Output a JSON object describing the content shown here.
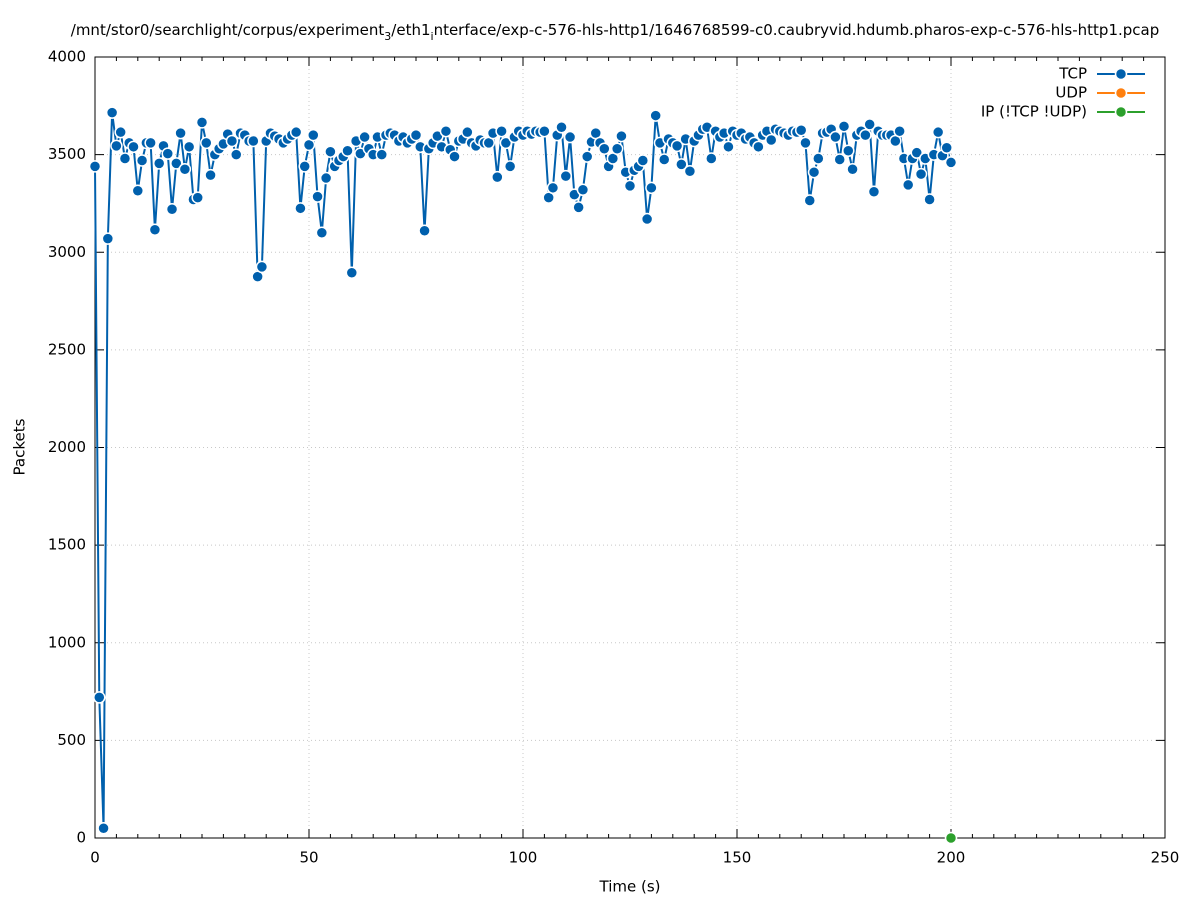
{
  "chart_data": {
    "type": "line",
    "title": [
      "/mnt/stor0/searchlight/corpus/experiment",
      "3",
      "/eth1",
      "i",
      "nterface/exp-c-576-hls-http1/1646768599-c0.caubryvid.hdumb.pharos-exp-c-576-hls-http1.pcap"
    ],
    "x_label": "Time (s)",
    "y_label": "Packets",
    "xlim": [
      0,
      250
    ],
    "xticks": [
      0,
      50,
      100,
      150,
      200,
      250
    ],
    "x_minor_per_major": 10,
    "ylim": [
      0,
      4000
    ],
    "yticks": [
      0,
      500,
      1000,
      1500,
      2000,
      2500,
      3000,
      3500,
      4000
    ],
    "grid": true,
    "legend": "top-right",
    "series": [
      {
        "name": "TCP",
        "color": "#0060ad",
        "x": [
          0,
          1,
          2,
          3,
          4,
          5,
          6,
          7,
          8,
          9,
          10,
          11,
          12,
          13,
          14,
          15,
          16,
          17,
          18,
          19,
          20,
          21,
          22,
          23,
          24,
          25,
          26,
          27,
          28,
          29,
          30,
          31,
          32,
          33,
          34,
          35,
          36,
          37,
          38,
          39,
          40,
          41,
          42,
          43,
          44,
          45,
          46,
          47,
          48,
          49,
          50,
          51,
          52,
          53,
          54,
          55,
          56,
          57,
          58,
          59,
          60,
          61,
          62,
          63,
          64,
          65,
          66,
          67,
          68,
          69,
          70,
          71,
          72,
          73,
          74,
          75,
          76,
          77,
          78,
          79,
          80,
          81,
          82,
          83,
          84,
          85,
          86,
          87,
          88,
          89,
          90,
          91,
          92,
          93,
          94,
          95,
          96,
          97,
          98,
          99,
          100,
          101,
          102,
          103,
          104,
          105,
          106,
          107,
          108,
          109,
          110,
          111,
          112,
          113,
          114,
          115,
          116,
          117,
          118,
          119,
          120,
          121,
          122,
          123,
          124,
          125,
          126,
          127,
          128,
          129,
          130,
          131,
          132,
          133,
          134,
          135,
          136,
          137,
          138,
          139,
          140,
          141,
          142,
          143,
          144,
          145,
          146,
          147,
          148,
          149,
          150,
          151,
          152,
          153,
          154,
          155,
          156,
          157,
          158,
          159,
          160,
          161,
          162,
          163,
          164,
          165,
          166,
          167,
          168,
          169,
          170,
          171,
          172,
          173,
          174,
          175,
          176,
          177,
          178,
          179,
          180,
          181,
          182,
          183,
          184,
          185,
          186,
          187,
          188,
          189,
          190,
          191,
          192,
          193,
          194,
          195,
          196,
          197,
          198,
          199,
          200
        ],
        "values": [
          3440,
          720,
          50,
          3070,
          3715,
          3545,
          3615,
          3480,
          3560,
          3540,
          3315,
          3470,
          3560,
          3560,
          3115,
          3455,
          3545,
          3505,
          3220,
          3455,
          3610,
          3425,
          3540,
          3270,
          3280,
          3665,
          3560,
          3395,
          3500,
          3530,
          3555,
          3605,
          3570,
          3500,
          3610,
          3600,
          3570,
          3570,
          2875,
          2925,
          3570,
          3610,
          3595,
          3580,
          3560,
          3580,
          3600,
          3615,
          3225,
          3440,
          3550,
          3600,
          3285,
          3100,
          3380,
          3515,
          3440,
          3470,
          3490,
          3520,
          2895,
          3570,
          3505,
          3590,
          3530,
          3500,
          3590,
          3500,
          3600,
          3610,
          3600,
          3570,
          3590,
          3560,
          3580,
          3600,
          3540,
          3110,
          3530,
          3560,
          3595,
          3540,
          3620,
          3525,
          3490,
          3570,
          3580,
          3615,
          3560,
          3545,
          3575,
          3560,
          3560,
          3610,
          3385,
          3620,
          3560,
          3440,
          3590,
          3620,
          3600,
          3620,
          3605,
          3620,
          3615,
          3620,
          3280,
          3330,
          3600,
          3640,
          3390,
          3590,
          3295,
          3230,
          3320,
          3490,
          3565,
          3610,
          3560,
          3530,
          3440,
          3480,
          3530,
          3595,
          3410,
          3340,
          3420,
          3440,
          3470,
          3170,
          3330,
          3700,
          3560,
          3475,
          3580,
          3560,
          3545,
          3450,
          3580,
          3415,
          3570,
          3600,
          3630,
          3640,
          3480,
          3620,
          3590,
          3610,
          3540,
          3620,
          3600,
          3610,
          3580,
          3590,
          3560,
          3540,
          3600,
          3620,
          3575,
          3630,
          3620,
          3610,
          3600,
          3620,
          3615,
          3625,
          3560,
          3265,
          3410,
          3480,
          3610,
          3615,
          3630,
          3590,
          3475,
          3645,
          3520,
          3425,
          3600,
          3620,
          3600,
          3655,
          3310,
          3620,
          3600,
          3600,
          3600,
          3570,
          3620,
          3480,
          3345,
          3480,
          3510,
          3400,
          3480,
          3270,
          3500,
          3615,
          3495,
          3535,
          3460
        ]
      },
      {
        "name": "UDP",
        "color": "#ff7f0e",
        "x": [],
        "values": []
      },
      {
        "name": "IP (!TCP  !UDP)",
        "color": "#2ca02c",
        "x": [
          200
        ],
        "values": [
          0
        ]
      }
    ]
  }
}
